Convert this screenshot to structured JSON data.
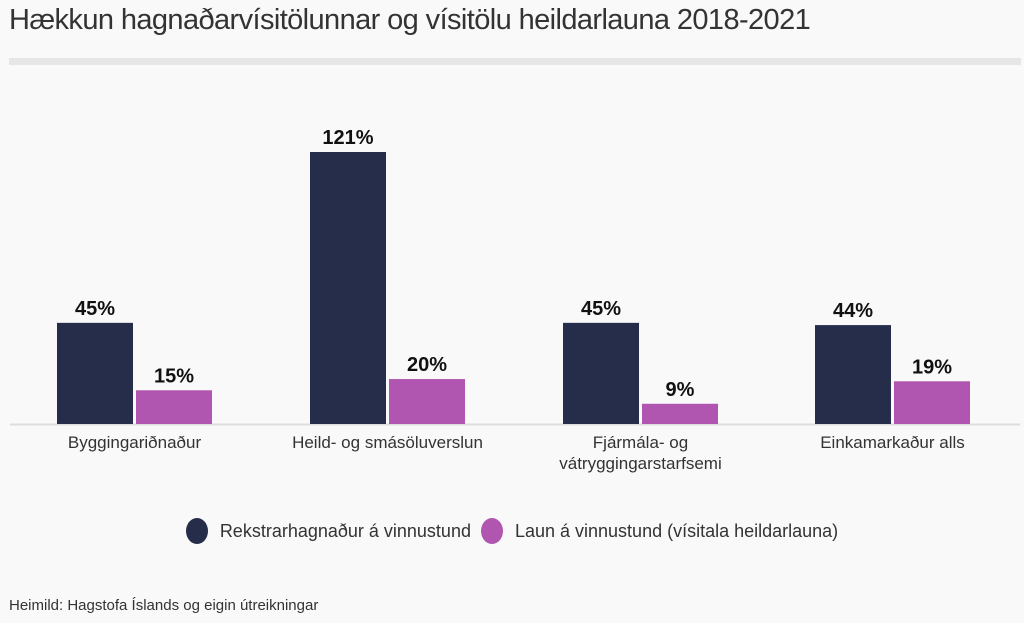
{
  "title": "Hækkun hagnaðarvísitölunnar og vísitölu heildarlauna 2018-2021",
  "source": "Heimild: Hagstofa Íslands og eigin útreikningar",
  "chart_data": {
    "type": "bar",
    "title": "Hækkun hagnaðarvísitölunnar og vísitölu heildarlauna 2018-2021",
    "categories": [
      [
        "Byggingariðnaður"
      ],
      [
        "Heild- og smásöluverslun"
      ],
      [
        "Fjármála- og",
        "vátryggingarstarfsemi"
      ],
      [
        "Einkamarkaður alls"
      ]
    ],
    "series": [
      {
        "name": "Rekstrarhagnaður á vinnustund",
        "color": "#252d4a",
        "values": [
          45,
          121,
          45,
          44
        ],
        "labels": [
          "45%",
          "121%",
          "45%",
          "44%"
        ]
      },
      {
        "name": "Laun á vinnustund (vísitala heildarlauna)",
        "color": "#b055b0",
        "values": [
          15,
          20,
          9,
          19
        ],
        "labels": [
          "15%",
          "20%",
          "9%",
          "19%"
        ]
      }
    ],
    "ylim": [
      0,
      121
    ],
    "grid": false,
    "legend": "bottom"
  }
}
